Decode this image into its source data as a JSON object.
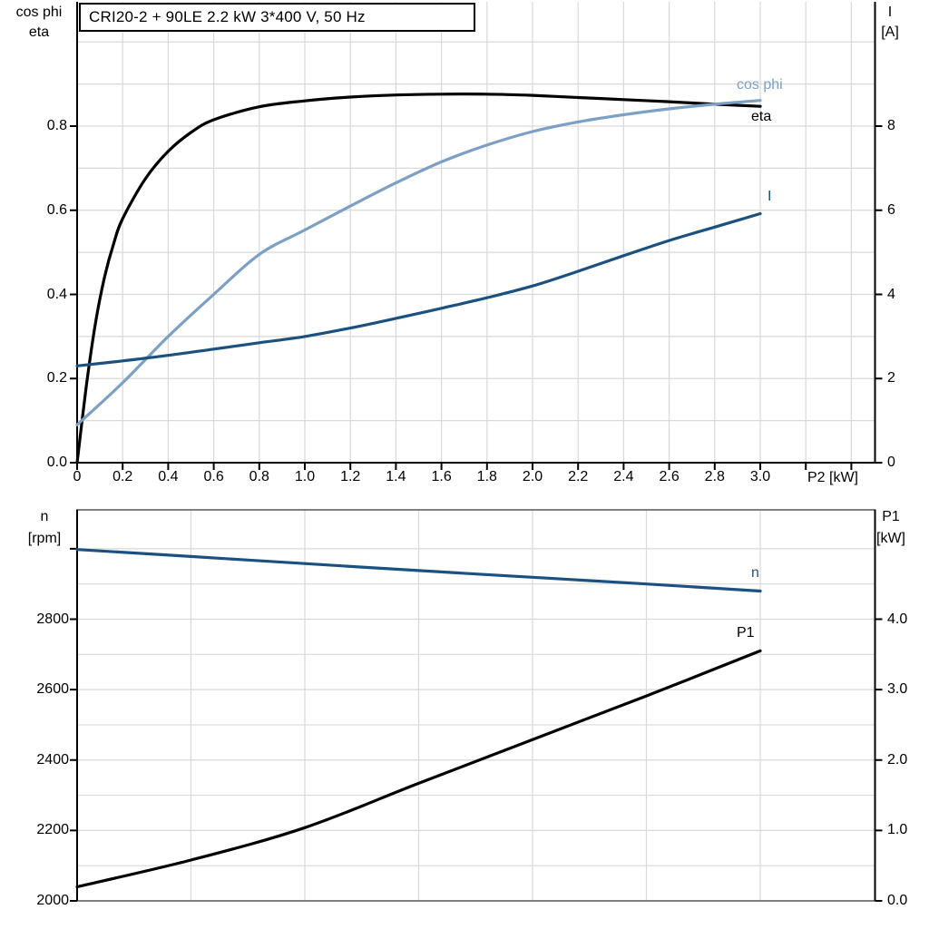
{
  "colors": {
    "black": "#000000",
    "light_blue": "#7CA0C4",
    "dark_blue": "#1B5180",
    "grid": "#D9D9D9",
    "frame_gray": "#808080"
  },
  "chart_data": [
    {
      "id": "top-plot",
      "type": "line",
      "title": "CRI20-2 + 90LE   2.2 kW   3*400 V, 50 Hz",
      "xlabel": "P2 [kW]",
      "ylabel_left_line1": "cos phi",
      "ylabel_left_line2": "eta",
      "ylabel_right_line1": "I",
      "ylabel_right_line2": "[A]",
      "xlim": [
        0,
        3.5
      ],
      "ylim_left": [
        0,
        1.095
      ],
      "ylim_right": [
        0,
        10.95
      ],
      "grid": "on",
      "legend_position": "curve-end-labels",
      "x_tick_labels": [
        "0",
        "0.2",
        "0.4",
        "0.6",
        "0.8",
        "1.0",
        "1.2",
        "1.4",
        "1.6",
        "1.8",
        "2.0",
        "2.2",
        "2.4",
        "2.6",
        "2.8",
        "3.0"
      ],
      "x_ticks_unlabeled": [
        3.2,
        3.4
      ],
      "left_tick_labels": [
        "0.0",
        "0.2",
        "0.4",
        "0.6",
        "0.8"
      ],
      "right_tick_labels": [
        "0",
        "2",
        "4",
        "6",
        "8"
      ],
      "series": [
        {
          "name": "eta",
          "label": "eta",
          "axis": "left",
          "color": "#000000",
          "x": [
            0,
            0.04,
            0.08,
            0.12,
            0.16,
            0.2,
            0.3,
            0.4,
            0.5,
            0.6,
            0.8,
            1.0,
            1.2,
            1.4,
            1.6,
            1.8,
            2.0,
            2.2,
            2.4,
            2.6,
            2.8,
            3.0
          ],
          "y": [
            0,
            0.18,
            0.33,
            0.44,
            0.52,
            0.58,
            0.675,
            0.74,
            0.785,
            0.815,
            0.846,
            0.86,
            0.869,
            0.874,
            0.876,
            0.876,
            0.873,
            0.868,
            0.863,
            0.858,
            0.852,
            0.847
          ]
        },
        {
          "name": "cos phi",
          "label": "cos phi",
          "axis": "left",
          "color": "#7CA0C4",
          "x": [
            0,
            0.2,
            0.4,
            0.6,
            0.8,
            1.0,
            1.2,
            1.4,
            1.6,
            1.8,
            2.0,
            2.2,
            2.4,
            2.6,
            2.8,
            3.0
          ],
          "y": [
            0.09,
            0.19,
            0.3,
            0.4,
            0.495,
            0.553,
            0.61,
            0.665,
            0.715,
            0.755,
            0.787,
            0.81,
            0.827,
            0.841,
            0.852,
            0.861
          ]
        },
        {
          "name": "I",
          "label": "I",
          "axis": "right",
          "color": "#1B5180",
          "x": [
            0,
            0.2,
            0.4,
            0.6,
            0.8,
            1.0,
            1.2,
            1.4,
            1.6,
            1.8,
            2.0,
            2.2,
            2.4,
            2.6,
            2.8,
            3.0
          ],
          "y": [
            2.3,
            2.42,
            2.55,
            2.7,
            2.85,
            3.0,
            3.2,
            3.43,
            3.67,
            3.92,
            4.2,
            4.55,
            4.92,
            5.28,
            5.6,
            5.92
          ]
        }
      ]
    },
    {
      "id": "bottom-plot",
      "type": "line",
      "title": "",
      "xlabel": "",
      "ylabel_left_line1": "n",
      "ylabel_left_line2": "[rpm]",
      "ylabel_right_line1": "P1",
      "ylabel_right_line2": "[kW]",
      "xlim": [
        0,
        3.5
      ],
      "ylim_left": [
        2000,
        3110
      ],
      "ylim_right": [
        0,
        5.55
      ],
      "grid": "on",
      "legend_position": "curve-end-labels",
      "left_tick_labels": [
        "2000",
        "2200",
        "2400",
        "2600",
        "2800"
      ],
      "left_ticks_unlabeled": [
        3000
      ],
      "right_tick_labels": [
        "0.0",
        "1.0",
        "2.0",
        "3.0",
        "4.0"
      ],
      "series": [
        {
          "name": "n",
          "label": "n",
          "axis": "left",
          "color": "#1B5180",
          "x": [
            0,
            0.5,
            1.0,
            1.5,
            2.0,
            2.5,
            3.0
          ],
          "y": [
            2998,
            2978,
            2958,
            2938,
            2919,
            2900,
            2880
          ]
        },
        {
          "name": "P1",
          "label": "P1",
          "axis": "right",
          "color": "#000000",
          "x": [
            0,
            0.5,
            1.0,
            1.5,
            2.0,
            2.5,
            3.0
          ],
          "y": [
            0.2,
            0.58,
            1.04,
            1.67,
            2.29,
            2.91,
            3.55
          ]
        }
      ]
    }
  ]
}
